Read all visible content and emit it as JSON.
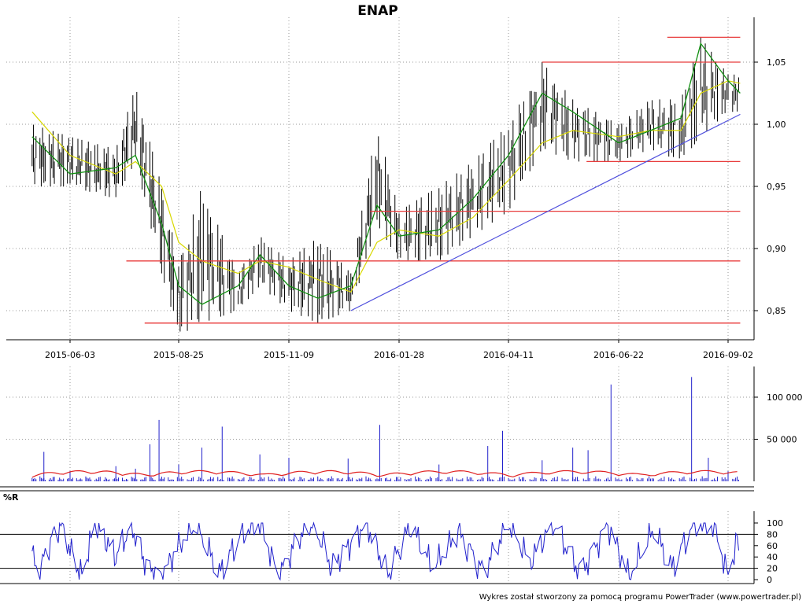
{
  "chart_data": [
    {
      "type": "ohlc",
      "title": "ENAP",
      "x_tick_labels": [
        "2015-06-03",
        "2015-08-25",
        "2015-11-09",
        "2016-01-28",
        "2016-04-11",
        "2016-06-22",
        "2016-09-02"
      ],
      "y_tick_labels": [
        "0,85",
        "0,90",
        "0,95",
        "1,00",
        "1,05"
      ],
      "y_ticks": [
        0.85,
        0.9,
        0.95,
        1.0,
        1.05
      ],
      "ylim": [
        0.83,
        1.07
      ],
      "colors": {
        "bars": "#000000",
        "fast_ma": "#109010",
        "slow_ma": "#d8d800",
        "horizontal_lines": "#e83c3c",
        "trend_line": "#5050dd"
      },
      "support_resistance": [
        {
          "from": "2016-07-24",
          "to": "2016-09-10",
          "value": 1.07
        },
        {
          "from": "2016-05-03",
          "to": "2016-09-10",
          "value": 1.05
        },
        {
          "from": "2016-06-01",
          "to": "2016-09-10",
          "value": 0.97
        },
        {
          "from": "2016-01-07",
          "to": "2016-09-10",
          "value": 0.93
        },
        {
          "from": "2015-07-16",
          "to": "2016-09-10",
          "value": 0.89
        },
        {
          "from": "2015-07-30",
          "to": "2016-09-10",
          "value": 0.84
        }
      ],
      "trend_line": {
        "from_date": "2015-12-24",
        "from_value": 0.85,
        "to_date": "2016-09-10",
        "to_value": 1.008
      },
      "ohlc_samples": [
        {
          "date": "2015-05-05",
          "high": 1.0,
          "low": 0.95
        },
        {
          "date": "2015-06-03",
          "high": 0.99,
          "low": 0.95
        },
        {
          "date": "2015-07-08",
          "high": 0.98,
          "low": 0.94
        },
        {
          "date": "2015-07-23",
          "high": 1.03,
          "low": 0.97
        },
        {
          "date": "2015-08-12",
          "high": 0.95,
          "low": 0.88
        },
        {
          "date": "2015-08-25",
          "high": 0.89,
          "low": 0.83
        },
        {
          "date": "2015-09-10",
          "high": 0.95,
          "low": 0.84
        },
        {
          "date": "2015-10-05",
          "high": 0.88,
          "low": 0.85
        },
        {
          "date": "2015-10-20",
          "high": 0.91,
          "low": 0.87
        },
        {
          "date": "2015-11-09",
          "high": 0.89,
          "low": 0.85
        },
        {
          "date": "2015-11-30",
          "high": 0.91,
          "low": 0.84
        },
        {
          "date": "2015-12-24",
          "high": 0.88,
          "low": 0.85
        },
        {
          "date": "2016-01-12",
          "high": 1.0,
          "low": 0.92
        },
        {
          "date": "2016-01-28",
          "high": 0.93,
          "low": 0.89
        },
        {
          "date": "2016-02-24",
          "high": 0.95,
          "low": 0.89
        },
        {
          "date": "2016-03-18",
          "high": 0.97,
          "low": 0.91
        },
        {
          "date": "2016-04-11",
          "high": 1.0,
          "low": 0.93
        },
        {
          "date": "2016-05-03",
          "high": 1.05,
          "low": 0.98
        },
        {
          "date": "2016-05-23",
          "high": 1.02,
          "low": 0.97
        },
        {
          "date": "2016-06-22",
          "high": 1.0,
          "low": 0.97
        },
        {
          "date": "2016-07-13",
          "high": 1.02,
          "low": 0.98
        },
        {
          "date": "2016-08-02",
          "high": 1.02,
          "low": 0.97
        },
        {
          "date": "2016-08-15",
          "high": 1.07,
          "low": 0.99
        },
        {
          "date": "2016-09-02",
          "high": 1.04,
          "low": 1.01
        }
      ],
      "fast_ma": [
        {
          "date": "2015-05-05",
          "value": 0.99
        },
        {
          "date": "2015-06-03",
          "value": 0.96
        },
        {
          "date": "2015-07-08",
          "value": 0.965
        },
        {
          "date": "2015-07-23",
          "value": 0.975
        },
        {
          "date": "2015-08-12",
          "value": 0.92
        },
        {
          "date": "2015-08-25",
          "value": 0.87
        },
        {
          "date": "2015-09-10",
          "value": 0.855
        },
        {
          "date": "2015-10-05",
          "value": 0.87
        },
        {
          "date": "2015-10-20",
          "value": 0.895
        },
        {
          "date": "2015-11-09",
          "value": 0.87
        },
        {
          "date": "2015-11-30",
          "value": 0.86
        },
        {
          "date": "2015-12-24",
          "value": 0.87
        },
        {
          "date": "2016-01-12",
          "value": 0.935
        },
        {
          "date": "2016-01-28",
          "value": 0.91
        },
        {
          "date": "2016-02-24",
          "value": 0.915
        },
        {
          "date": "2016-03-18",
          "value": 0.94
        },
        {
          "date": "2016-04-11",
          "value": 0.975
        },
        {
          "date": "2016-05-03",
          "value": 1.025
        },
        {
          "date": "2016-05-23",
          "value": 1.01
        },
        {
          "date": "2016-06-22",
          "value": 0.985
        },
        {
          "date": "2016-07-13",
          "value": 0.995
        },
        {
          "date": "2016-08-02",
          "value": 1.005
        },
        {
          "date": "2016-08-15",
          "value": 1.065
        },
        {
          "date": "2016-09-02",
          "value": 1.035
        },
        {
          "date": "2016-09-10",
          "value": 1.025
        }
      ],
      "slow_ma": [
        {
          "date": "2015-05-05",
          "value": 1.01
        },
        {
          "date": "2015-06-03",
          "value": 0.975
        },
        {
          "date": "2015-07-08",
          "value": 0.96
        },
        {
          "date": "2015-07-23",
          "value": 0.97
        },
        {
          "date": "2015-08-12",
          "value": 0.95
        },
        {
          "date": "2015-08-25",
          "value": 0.905
        },
        {
          "date": "2015-09-10",
          "value": 0.89
        },
        {
          "date": "2015-10-05",
          "value": 0.88
        },
        {
          "date": "2015-10-20",
          "value": 0.89
        },
        {
          "date": "2015-11-09",
          "value": 0.885
        },
        {
          "date": "2015-11-30",
          "value": 0.875
        },
        {
          "date": "2015-12-24",
          "value": 0.865
        },
        {
          "date": "2016-01-12",
          "value": 0.905
        },
        {
          "date": "2016-01-28",
          "value": 0.915
        },
        {
          "date": "2016-02-24",
          "value": 0.91
        },
        {
          "date": "2016-03-18",
          "value": 0.925
        },
        {
          "date": "2016-04-11",
          "value": 0.955
        },
        {
          "date": "2016-05-03",
          "value": 0.985
        },
        {
          "date": "2016-05-23",
          "value": 0.995
        },
        {
          "date": "2016-06-22",
          "value": 0.99
        },
        {
          "date": "2016-07-13",
          "value": 0.995
        },
        {
          "date": "2016-08-02",
          "value": 0.995
        },
        {
          "date": "2016-08-15",
          "value": 1.025
        },
        {
          "date": "2016-09-02",
          "value": 1.035
        },
        {
          "date": "2016-09-10",
          "value": 1.033
        }
      ]
    },
    {
      "type": "bar",
      "y_tick_labels": [
        "50 000",
        "100 000"
      ],
      "y_ticks": [
        50000,
        100000
      ],
      "ylim": [
        0,
        125000
      ],
      "colors": {
        "bars": "#2020cc",
        "average": "#e02020"
      },
      "average_line_value": 8000,
      "samples": [
        {
          "date": "2015-05-05",
          "value": 4000
        },
        {
          "date": "2015-05-14",
          "value": 35000
        },
        {
          "date": "2015-06-03",
          "value": 12000
        },
        {
          "date": "2015-07-08",
          "value": 18000
        },
        {
          "date": "2015-07-23",
          "value": 15000
        },
        {
          "date": "2015-08-03",
          "value": 44000
        },
        {
          "date": "2015-08-10",
          "value": 73000
        },
        {
          "date": "2015-08-25",
          "value": 20000
        },
        {
          "date": "2015-09-10",
          "value": 40000
        },
        {
          "date": "2015-09-24",
          "value": 65000
        },
        {
          "date": "2015-10-20",
          "value": 32000
        },
        {
          "date": "2015-11-09",
          "value": 28000
        },
        {
          "date": "2015-12-22",
          "value": 27000
        },
        {
          "date": "2016-01-14",
          "value": 67000
        },
        {
          "date": "2016-02-24",
          "value": 20000
        },
        {
          "date": "2016-03-28",
          "value": 42000
        },
        {
          "date": "2016-04-07",
          "value": 60000
        },
        {
          "date": "2016-05-03",
          "value": 25000
        },
        {
          "date": "2016-05-23",
          "value": 40000
        },
        {
          "date": "2016-06-02",
          "value": 37000
        },
        {
          "date": "2016-06-17",
          "value": 115000
        },
        {
          "date": "2016-08-09",
          "value": 124000
        },
        {
          "date": "2016-08-20",
          "value": 28000
        },
        {
          "date": "2016-09-02",
          "value": 12000
        }
      ]
    },
    {
      "type": "line",
      "title": "%R",
      "y_tick_labels": [
        "0",
        "20",
        "40",
        "60",
        "80",
        "100"
      ],
      "y_ticks": [
        0,
        20,
        40,
        60,
        80,
        100
      ],
      "ylim": [
        0,
        100
      ],
      "reference_lines": [
        20,
        80
      ],
      "colors": {
        "line": "#2020cc"
      },
      "samples": [
        {
          "date": "2015-05-05",
          "value": 50
        },
        {
          "date": "2015-05-09",
          "value": 5
        },
        {
          "date": "2015-05-19",
          "value": 70
        },
        {
          "date": "2015-05-27",
          "value": 100
        },
        {
          "date": "2015-06-03",
          "value": 55
        },
        {
          "date": "2015-06-12",
          "value": 5
        },
        {
          "date": "2015-06-22",
          "value": 100
        },
        {
          "date": "2015-07-08",
          "value": 40
        },
        {
          "date": "2015-07-20",
          "value": 95
        },
        {
          "date": "2015-08-01",
          "value": 20
        },
        {
          "date": "2015-08-12",
          "value": 5
        },
        {
          "date": "2015-08-25",
          "value": 60
        },
        {
          "date": "2015-09-06",
          "value": 100
        },
        {
          "date": "2015-09-22",
          "value": 10
        },
        {
          "date": "2015-10-08",
          "value": 85
        },
        {
          "date": "2015-10-20",
          "value": 100
        },
        {
          "date": "2015-11-02",
          "value": 5
        },
        {
          "date": "2015-11-15",
          "value": 70
        },
        {
          "date": "2015-11-27",
          "value": 100
        },
        {
          "date": "2015-12-10",
          "value": 20
        },
        {
          "date": "2016-01-04",
          "value": 100
        },
        {
          "date": "2016-01-20",
          "value": 10
        },
        {
          "date": "2016-02-05",
          "value": 95
        },
        {
          "date": "2016-02-20",
          "value": 20
        },
        {
          "date": "2016-03-08",
          "value": 85
        },
        {
          "date": "2016-03-25",
          "value": 15
        },
        {
          "date": "2016-04-11",
          "value": 100
        },
        {
          "date": "2016-04-25",
          "value": 30
        },
        {
          "date": "2016-05-10",
          "value": 100
        },
        {
          "date": "2016-05-28",
          "value": 10
        },
        {
          "date": "2016-06-15",
          "value": 95
        },
        {
          "date": "2016-06-29",
          "value": 5
        },
        {
          "date": "2016-07-15",
          "value": 90
        },
        {
          "date": "2016-07-27",
          "value": 20
        },
        {
          "date": "2016-08-10",
          "value": 100
        },
        {
          "date": "2016-08-24",
          "value": 95
        },
        {
          "date": "2016-09-02",
          "value": 5
        },
        {
          "date": "2016-09-08",
          "value": 75
        },
        {
          "date": "2016-09-10",
          "value": 0
        }
      ]
    }
  ],
  "footer": "Wykres został stworzony za pomocą programu PowerTrader (www.powertrader.pl)"
}
